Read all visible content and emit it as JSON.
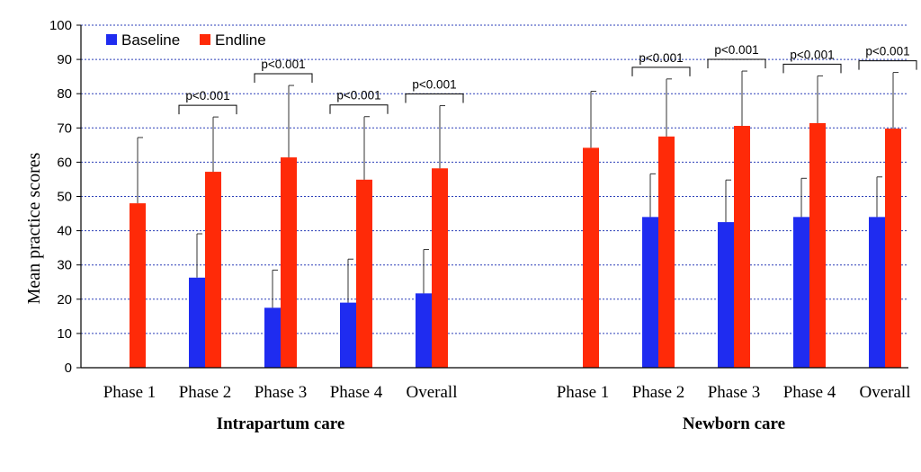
{
  "chart_data": {
    "type": "bar",
    "ylabel": "Mean practice scores",
    "ylim": [
      0,
      100
    ],
    "yticks": [
      0,
      10,
      20,
      30,
      40,
      50,
      60,
      70,
      80,
      90,
      100
    ],
    "grid": true,
    "legend": {
      "placement": "top-left"
    },
    "colors": {
      "Baseline": "#1f2cf0",
      "Endline": "#ff2a08"
    },
    "series": [
      {
        "name": "Baseline"
      },
      {
        "name": "Endline"
      }
    ],
    "groups": [
      {
        "label": "Intrapartum care",
        "categories": [
          "Phase 1",
          "Phase 2",
          "Phase 3",
          "Phase 4",
          "Overall"
        ],
        "baseline": [
          null,
          26.3,
          17.5,
          19.0,
          21.7
        ],
        "baseline_err": [
          null,
          12.8,
          11.0,
          12.7,
          12.8
        ],
        "endline": [
          48.0,
          57.2,
          61.4,
          54.9,
          58.2
        ],
        "endline_err": [
          19.2,
          16.0,
          21.0,
          18.4,
          18.3
        ],
        "pvalues": [
          null,
          "p<0.001",
          "p<0.001",
          "p<0.001",
          "p<0.001"
        ]
      },
      {
        "label": "Newborn care",
        "categories": [
          "Phase 1",
          "Phase 2",
          "Phase 3",
          "Phase 4",
          "Overall"
        ],
        "baseline": [
          null,
          44.0,
          42.5,
          44.0,
          44.0
        ],
        "baseline_err": [
          null,
          12.6,
          12.3,
          11.3,
          11.7
        ],
        "endline": [
          64.2,
          67.5,
          70.6,
          71.4,
          69.8
        ],
        "endline_err": [
          16.5,
          16.8,
          16.0,
          13.8,
          16.4
        ],
        "pvalues": [
          null,
          "p<0.001",
          "p<0.001",
          "p<0.001",
          "p<0.001"
        ]
      }
    ]
  }
}
